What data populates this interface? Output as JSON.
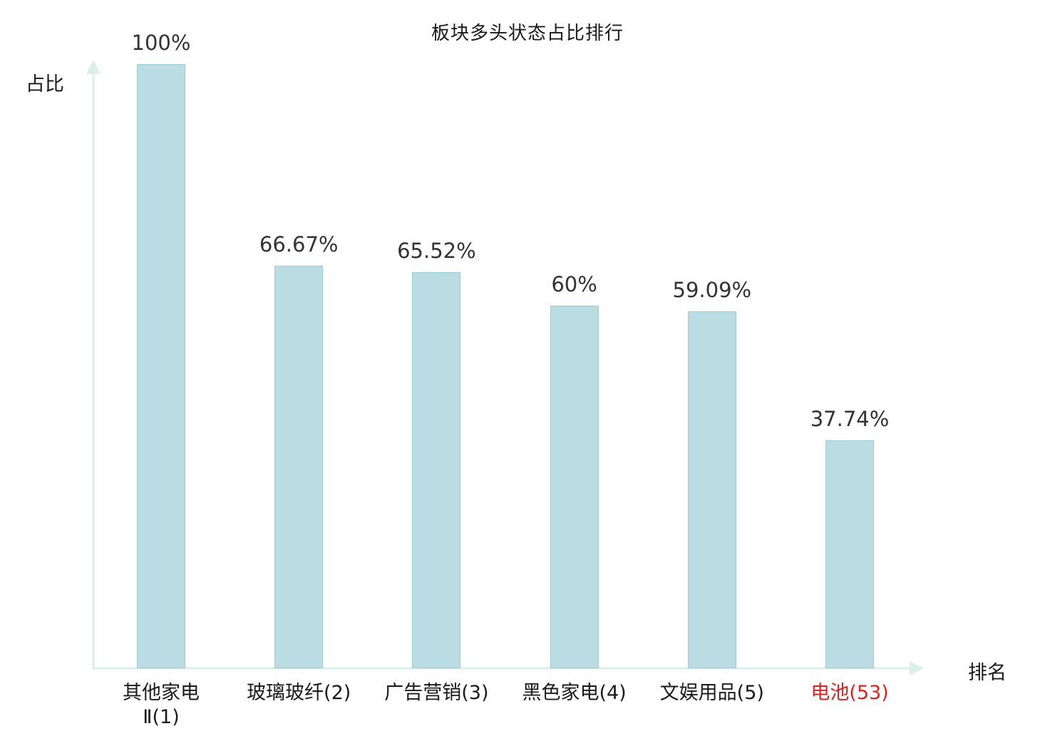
{
  "chart_data": {
    "type": "bar",
    "title": "板块多头状态占比排行",
    "xlabel": "排名",
    "ylabel": "占比",
    "ylim": [
      0,
      100
    ],
    "grid": false,
    "legend": "none",
    "categories": [
      "其他家电Ⅱ(1)",
      "玻璃玻纤(2)",
      "广告营销(3)",
      "黑色家电(4)",
      "文娱用品(5)",
      "电池(53)"
    ],
    "values": [
      100,
      66.67,
      65.52,
      60,
      59.09,
      37.74
    ],
    "bars": [
      {
        "category": "其他家电\nⅡ(1)",
        "value": 100,
        "value_label": "100%",
        "highlight": false
      },
      {
        "category": "玻璃玻纤(2)",
        "value": 66.67,
        "value_label": "66.67%",
        "highlight": false
      },
      {
        "category": "广告营销(3)",
        "value": 65.52,
        "value_label": "65.52%",
        "highlight": false
      },
      {
        "category": "黑色家电(4)",
        "value": 60,
        "value_label": "60%",
        "highlight": false
      },
      {
        "category": "文娱用品(5)",
        "value": 59.09,
        "value_label": "59.09%",
        "highlight": false
      },
      {
        "category": "电池(53)",
        "value": 37.74,
        "value_label": "37.74%",
        "highlight": true
      }
    ],
    "colors": {
      "bar_fill": "#b9dde2",
      "bar_border": "#9ccbd3",
      "axis": "#daefe8",
      "label": "#333333",
      "highlight_label": "#e01f1f"
    }
  }
}
